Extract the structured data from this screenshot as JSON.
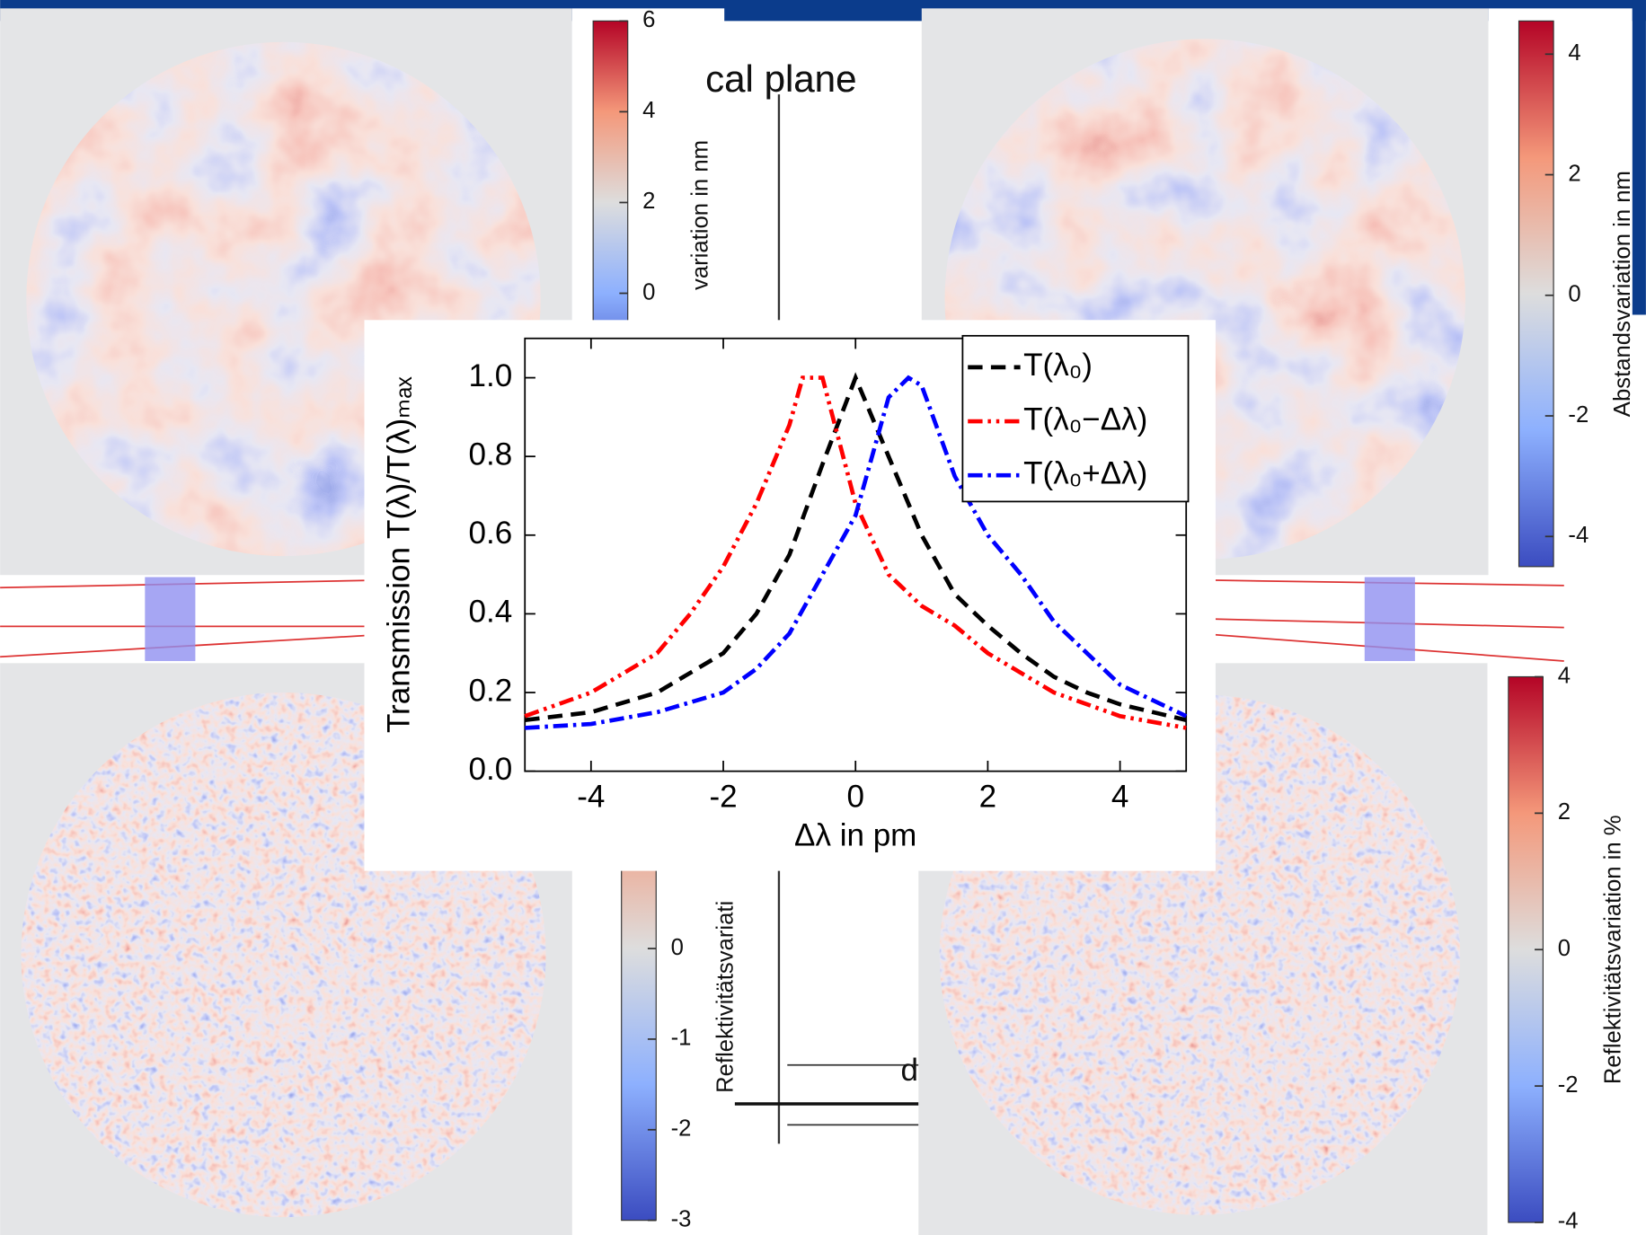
{
  "chart_data": [
    {
      "type": "line",
      "xlabel": "Δλ in pm",
      "ylabel": "Transmission T(λ)/T(λ)ₘₐₓ",
      "xlim": [
        -5,
        5
      ],
      "xticks": [
        -4,
        -2,
        0,
        2,
        4
      ],
      "ylim": [
        0,
        1.1
      ],
      "yticks": [
        {
          "value": 0,
          "label": "0.0"
        },
        0.2,
        0.4,
        0.6,
        0.8,
        {
          "value": 1,
          "label": "1.0"
        }
      ],
      "grid": false,
      "legend": "upper right",
      "series": [
        {
          "name": "T(λ₀)",
          "color": "#000000",
          "style": "dashed",
          "x": [
            -5,
            -4,
            -3,
            -2,
            -1.5,
            -1,
            -0.5,
            0,
            0.5,
            1,
            1.5,
            2,
            2.5,
            3,
            3.5,
            4,
            5
          ],
          "values": [
            0.13,
            0.15,
            0.2,
            0.3,
            0.4,
            0.55,
            0.78,
            1.0,
            0.8,
            0.6,
            0.45,
            0.37,
            0.3,
            0.24,
            0.2,
            0.17,
            0.13
          ]
        },
        {
          "name": "T(λ₀−Δλ)",
          "color": "#ff0000",
          "style": "dash-dot-dot",
          "x": [
            -5,
            -4,
            -3,
            -2.5,
            -2,
            -1.5,
            -1,
            -0.8,
            -0.5,
            0,
            0.5,
            1,
            1.5,
            2,
            3,
            4,
            5
          ],
          "values": [
            0.14,
            0.2,
            0.3,
            0.4,
            0.52,
            0.68,
            0.88,
            1.0,
            1.0,
            0.68,
            0.5,
            0.42,
            0.37,
            0.3,
            0.2,
            0.14,
            0.11
          ]
        },
        {
          "name": "T(λ₀+Δλ)",
          "color": "#0000ff",
          "style": "dash-dot",
          "x": [
            -5,
            -4,
            -3,
            -2,
            -1.5,
            -1,
            -0.5,
            0,
            0.5,
            0.8,
            1,
            1.5,
            2,
            2.5,
            3,
            4,
            5
          ],
          "values": [
            0.11,
            0.12,
            0.15,
            0.2,
            0.26,
            0.35,
            0.5,
            0.65,
            0.95,
            1.0,
            0.98,
            0.75,
            0.6,
            0.5,
            0.38,
            0.22,
            0.14
          ]
        }
      ]
    },
    {
      "type": "colorbar",
      "label": "variation in nm",
      "ylim": [
        -2,
        6
      ],
      "yticks": [
        0,
        2,
        4,
        6
      ]
    },
    {
      "type": "colorbar",
      "label": "Abstandsvariation in nm",
      "ylim": [
        -4.5,
        4.55
      ],
      "yticks": [
        -4,
        -2,
        0,
        2,
        4
      ]
    },
    {
      "type": "colorbar",
      "label": "Reflektivitätsvariati",
      "ylim": [
        -3,
        3
      ],
      "yticks": [
        -3,
        -2,
        -1,
        0
      ]
    },
    {
      "type": "colorbar",
      "label": "Reflektivitätsvariation in %",
      "ylim": [
        -4,
        4
      ],
      "yticks": [
        -4,
        -2,
        0,
        2,
        4
      ]
    }
  ],
  "background_slide": {
    "heading": "cal plane",
    "marker": "d"
  }
}
